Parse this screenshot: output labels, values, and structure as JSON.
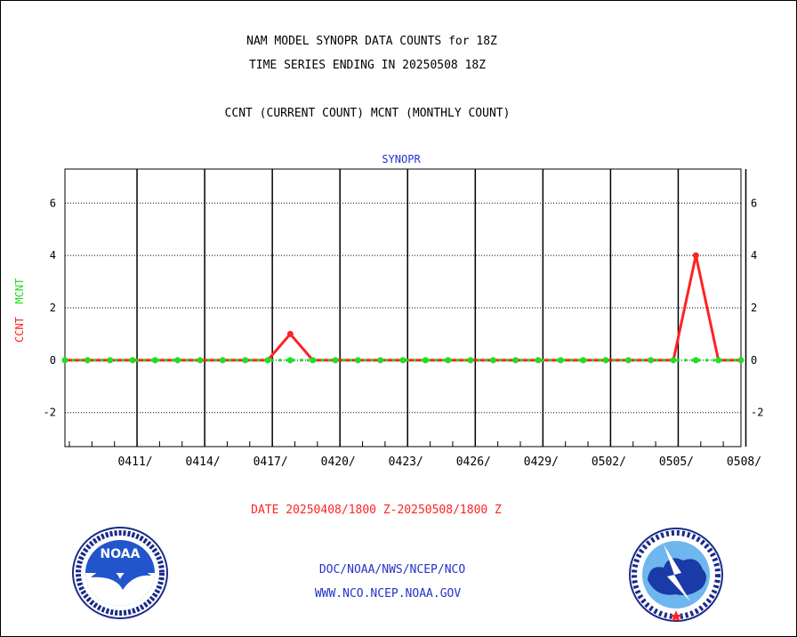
{
  "header": {
    "title_line1": "NAM MODEL SYNOPR DATA COUNTS for 18Z",
    "title_line2": "TIME SERIES ENDING IN 20250508 18Z",
    "subtitle": "CCNT (CURRENT COUNT) MCNT (MONTHLY COUNT)"
  },
  "footer": {
    "date_range": "DATE 20250408/1800 Z-20250508/1800 Z",
    "link1": "DOC/NOAA/NWS/NCEP/NCO",
    "link2": "WWW.NCO.NCEP.NOAA.GOV"
  },
  "colors": {
    "ccnt": "#ff2222",
    "mcnt": "#22dd22",
    "text_blue": "#2233cc"
  },
  "logos": {
    "left": "noaa-logo",
    "right": "national-weather-service-logo"
  },
  "chart_data": {
    "type": "line",
    "title": "SYNOPR",
    "ylabel_parts": [
      "CCNT",
      "MCNT"
    ],
    "ylim": [
      -3.3,
      7.3
    ],
    "yticks": [
      -2,
      0,
      2,
      4,
      6
    ],
    "ytick_labels": [
      "-2",
      "0",
      "2",
      "4",
      "6"
    ],
    "x_range_days": [
      0,
      30
    ],
    "xticks_days": [
      3,
      6,
      9,
      12,
      15,
      18,
      21,
      24,
      27,
      30
    ],
    "xtick_labels": [
      "0411/",
      "0414/",
      "0417/",
      "0420/",
      "0423/",
      "0426/",
      "0429/",
      "0502/",
      "0505/",
      "0508/"
    ],
    "x_dates": [
      "0408",
      "0409",
      "0410",
      "0411",
      "0412",
      "0413",
      "0414",
      "0415",
      "0416",
      "0417",
      "0418",
      "0419",
      "0420",
      "0421",
      "0422",
      "0423",
      "0424",
      "0425",
      "0426",
      "0427",
      "0428",
      "0429",
      "0430",
      "0501",
      "0502",
      "0503",
      "0504",
      "0505",
      "0506",
      "0507",
      "0508"
    ],
    "series": [
      {
        "name": "CCNT",
        "color": "#ff2222",
        "values": [
          0,
          0,
          0,
          0,
          0,
          0,
          0,
          0,
          0,
          0,
          1,
          0,
          0,
          0,
          0,
          0,
          0,
          0,
          0,
          0,
          0,
          0,
          0,
          0,
          0,
          0,
          0,
          0,
          4,
          0,
          0
        ]
      },
      {
        "name": "MCNT",
        "color": "#22dd22",
        "values": [
          0,
          0,
          0,
          0,
          0,
          0,
          0,
          0,
          0,
          0,
          0,
          0,
          0,
          0,
          0,
          0,
          0,
          0,
          0,
          0,
          0,
          0,
          0,
          0,
          0,
          0,
          0,
          0,
          0,
          0,
          0
        ]
      }
    ]
  }
}
